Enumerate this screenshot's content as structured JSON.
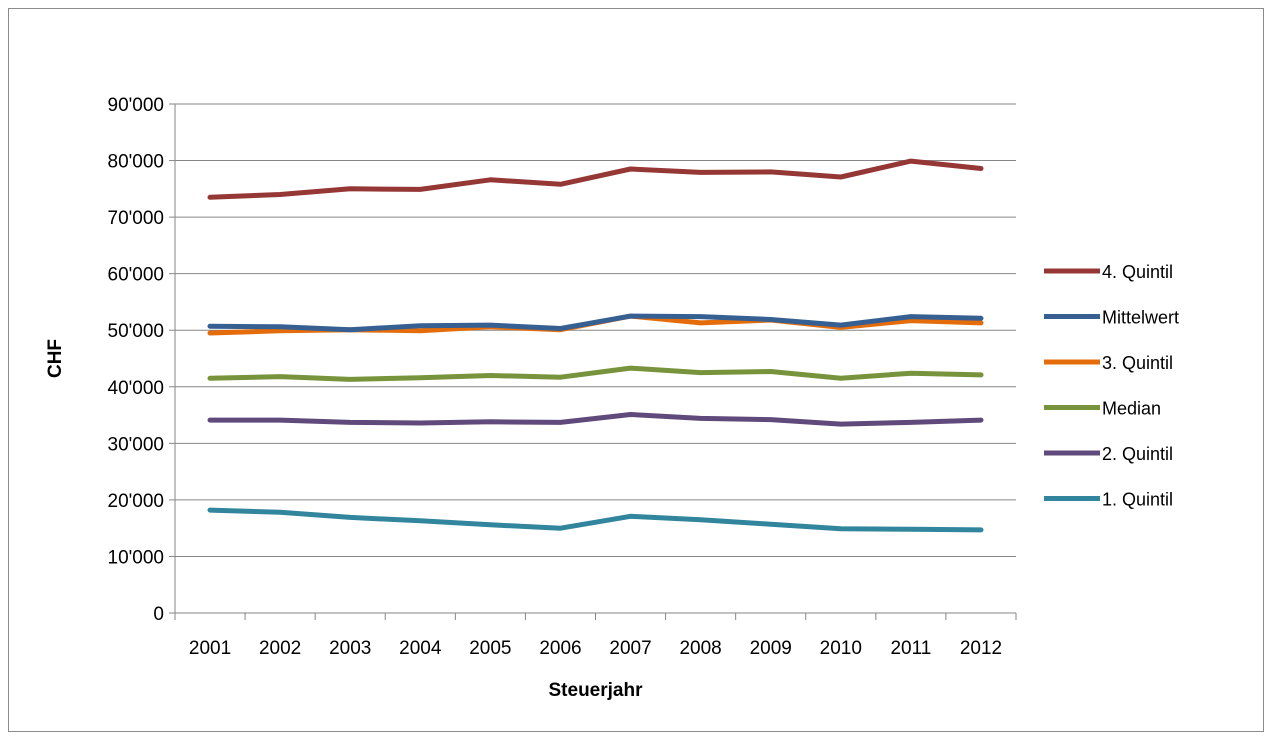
{
  "chart_data": {
    "type": "line",
    "title": "",
    "xlabel": "Steuerjahr",
    "ylabel": "CHF",
    "ylim": [
      0,
      90000
    ],
    "yticks": [
      0,
      10000,
      20000,
      30000,
      40000,
      50000,
      60000,
      70000,
      80000,
      90000
    ],
    "ytick_labels": [
      "0",
      "10'000",
      "20'000",
      "30'000",
      "40'000",
      "50'000",
      "60'000",
      "70'000",
      "80'000",
      "90'000"
    ],
    "categories": [
      "2001",
      "2002",
      "2003",
      "2004",
      "2005",
      "2006",
      "2007",
      "2008",
      "2009",
      "2010",
      "2011",
      "2012"
    ],
    "grid": "horizontal",
    "legend_position": "right",
    "series": [
      {
        "name": "4. Quintil",
        "color": "#953735",
        "values": [
          73500,
          74000,
          75000,
          74900,
          76600,
          75800,
          78500,
          77900,
          78000,
          77100,
          79900,
          78600
        ]
      },
      {
        "name": "Mittelwert",
        "color": "#376092",
        "values": [
          50700,
          50600,
          50100,
          50800,
          50900,
          50300,
          52500,
          52400,
          51900,
          50900,
          52400,
          52100
        ]
      },
      {
        "name": "3. Quintil",
        "color": "#e46c0a",
        "values": [
          49500,
          49900,
          50100,
          49900,
          50600,
          50100,
          52500,
          51300,
          51800,
          50500,
          51700,
          51300
        ]
      },
      {
        "name": "Median",
        "color": "#77933c",
        "values": [
          41500,
          41800,
          41300,
          41600,
          42000,
          41700,
          43300,
          42500,
          42700,
          41500,
          42400,
          42100
        ]
      },
      {
        "name": "2. Quintil",
        "color": "#604a7b",
        "values": [
          34100,
          34100,
          33700,
          33600,
          33800,
          33700,
          35100,
          34400,
          34200,
          33400,
          33700,
          34100
        ]
      },
      {
        "name": "1. Quintil",
        "color": "#31859c",
        "values": [
          18200,
          17800,
          16900,
          16300,
          15600,
          15000,
          17100,
          16500,
          15700,
          14900,
          14800,
          14700
        ]
      }
    ]
  }
}
